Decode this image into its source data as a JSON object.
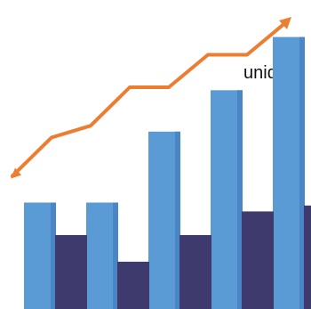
{
  "text_fragment": "unidad,",
  "chart_data": {
    "type": "bar",
    "categories": [
      "",
      "",
      "",
      "",
      ""
    ],
    "ylim": [
      0,
      100
    ],
    "grid": false,
    "legend": "none",
    "series": [
      {
        "values": [
          36,
          36,
          60,
          74,
          92
        ],
        "color": "#5b9bd5"
      },
      {
        "values": [
          25,
          16,
          25,
          33,
          35
        ],
        "color": "#3f3a6e"
      }
    ],
    "trend": {
      "type": "line",
      "values": [
        45,
        58,
        62,
        75,
        75,
        86,
        86,
        97
      ],
      "color": "#ed7d31"
    }
  }
}
